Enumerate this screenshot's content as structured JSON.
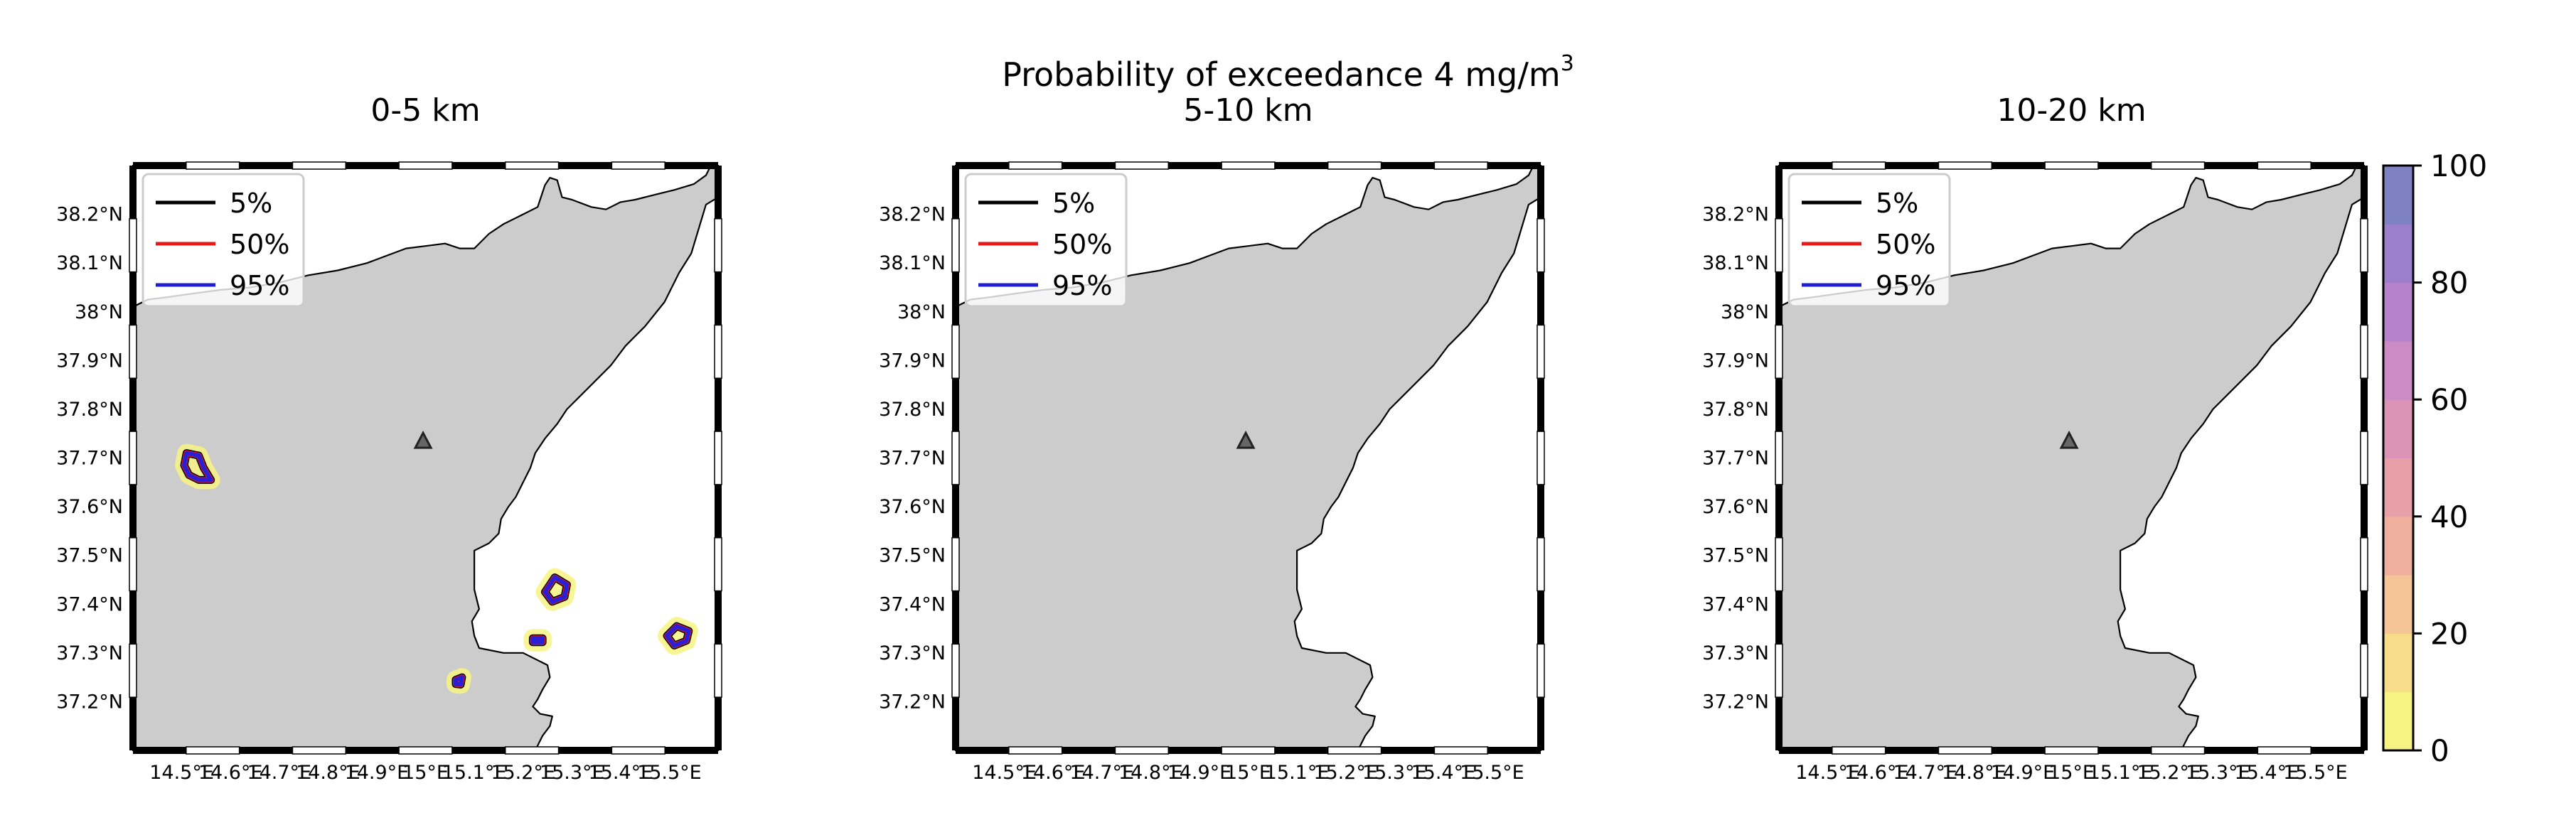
{
  "figure": {
    "suptitle_main": "Probability of exceedance 4 mg/m",
    "suptitle_sup": "3"
  },
  "chart_data": [
    {
      "type": "contour",
      "title": "0-5 km",
      "xlabel": "",
      "ylabel": "",
      "x_ticks": [
        "14.5°E",
        "14.6°E",
        "14.7°E",
        "14.8°E",
        "14.9°E",
        "15°E",
        "15.1°E",
        "15.2°E",
        "15.3°E",
        "15.4°E",
        "15.5°E"
      ],
      "y_ticks": [
        "38.2°N",
        "38.1°N",
        "38°N",
        "37.9°N",
        "37.8°N",
        "37.7°N",
        "37.6°N",
        "37.5°N",
        "37.4°N",
        "37.3°N",
        "37.2°N"
      ],
      "xlim": [
        14.4,
        15.6
      ],
      "ylim": [
        37.1,
        38.3
      ],
      "legend": {
        "position": "top-left",
        "entries": [
          {
            "label": "5%",
            "color": "#000000"
          },
          {
            "label": "50%",
            "color": "#e41a1c"
          },
          {
            "label": "95%",
            "color": "#1f1fd0"
          }
        ]
      },
      "vent": {
        "lon": 14.995,
        "lat": 37.734
      },
      "regions": [
        {
          "name": "plume-west",
          "points": [
            [
              14.51,
              37.71
            ],
            [
              14.535,
              37.705
            ],
            [
              14.545,
              37.68
            ],
            [
              14.56,
              37.655
            ],
            [
              14.535,
              37.655
            ],
            [
              14.515,
              37.665
            ],
            [
              14.505,
              37.685
            ]
          ]
        },
        {
          "name": "plume-catania",
          "points": [
            [
              15.245,
              37.425
            ],
            [
              15.265,
              37.455
            ],
            [
              15.29,
              37.44
            ],
            [
              15.285,
              37.415
            ],
            [
              15.26,
              37.405
            ]
          ]
        },
        {
          "name": "plume-east",
          "points": [
            [
              15.495,
              37.335
            ],
            [
              15.515,
              37.355
            ],
            [
              15.54,
              37.345
            ],
            [
              15.535,
              37.325
            ],
            [
              15.51,
              37.315
            ]
          ]
        },
        {
          "name": "plume-small-1",
          "points": [
            [
              15.22,
              37.33
            ],
            [
              15.24,
              37.33
            ],
            [
              15.24,
              37.322
            ],
            [
              15.22,
              37.322
            ]
          ]
        },
        {
          "name": "plume-small-2",
          "points": [
            [
              15.062,
              37.245
            ],
            [
              15.075,
              37.25
            ],
            [
              15.072,
              37.235
            ],
            [
              15.062,
              37.236
            ]
          ]
        }
      ]
    },
    {
      "type": "contour",
      "title": "5-10 km",
      "xlabel": "",
      "ylabel": "",
      "x_ticks": [
        "14.5°E",
        "14.6°E",
        "14.7°E",
        "14.8°E",
        "14.9°E",
        "15°E",
        "15.1°E",
        "15.2°E",
        "15.3°E",
        "15.4°E",
        "15.5°E"
      ],
      "y_ticks": [
        "38.2°N",
        "38.1°N",
        "38°N",
        "37.9°N",
        "37.8°N",
        "37.7°N",
        "37.6°N",
        "37.5°N",
        "37.4°N",
        "37.3°N",
        "37.2°N"
      ],
      "xlim": [
        14.4,
        15.6
      ],
      "ylim": [
        37.1,
        38.3
      ],
      "legend": {
        "position": "top-left",
        "entries": [
          {
            "label": "5%",
            "color": "#000000"
          },
          {
            "label": "50%",
            "color": "#e41a1c"
          },
          {
            "label": "95%",
            "color": "#1f1fd0"
          }
        ]
      },
      "vent": {
        "lon": 14.995,
        "lat": 37.734
      },
      "regions": []
    },
    {
      "type": "contour",
      "title": "10-20 km",
      "xlabel": "",
      "ylabel": "",
      "x_ticks": [
        "14.5°E",
        "14.6°E",
        "14.7°E",
        "14.8°E",
        "14.9°E",
        "15°E",
        "15.1°E",
        "15.2°E",
        "15.3°E",
        "15.4°E",
        "15.5°E"
      ],
      "y_ticks": [
        "38.2°N",
        "38.1°N",
        "38°N",
        "37.9°N",
        "37.8°N",
        "37.7°N",
        "37.6°N",
        "37.5°N",
        "37.4°N",
        "37.3°N",
        "37.2°N"
      ],
      "xlim": [
        14.4,
        15.6
      ],
      "ylim": [
        37.1,
        38.3
      ],
      "legend": {
        "position": "top-left",
        "entries": [
          {
            "label": "5%",
            "color": "#000000"
          },
          {
            "label": "50%",
            "color": "#e41a1c"
          },
          {
            "label": "95%",
            "color": "#1f1fd0"
          }
        ]
      },
      "vent": {
        "lon": 14.995,
        "lat": 37.734
      },
      "regions": []
    },
    {
      "type": "colorbar",
      "ticks": [
        "0",
        "20",
        "40",
        "60",
        "80",
        "100"
      ],
      "range": [
        0,
        100
      ],
      "levels": [
        0,
        10,
        20,
        30,
        40,
        50,
        60,
        70,
        80,
        90,
        100
      ],
      "colors": [
        "#f7f383",
        "#f7dc8a",
        "#f4c596",
        "#eeb09d",
        "#e7a0a8",
        "#dc94b6",
        "#cb8bc4",
        "#b582cc",
        "#9b7fcc",
        "#7f82c2"
      ]
    }
  ],
  "coastline": {
    "land_color": "#cccccc",
    "points": [
      [
        14.4,
        38.28
      ],
      [
        14.4,
        38.01
      ],
      [
        14.43,
        38.025
      ],
      [
        14.47,
        38.03
      ],
      [
        14.52,
        38.037
      ],
      [
        14.58,
        38.045
      ],
      [
        14.64,
        38.05
      ],
      [
        14.7,
        38.06
      ],
      [
        14.76,
        38.075
      ],
      [
        14.82,
        38.085
      ],
      [
        14.88,
        38.1
      ],
      [
        14.92,
        38.115
      ],
      [
        14.96,
        38.13
      ],
      [
        15.0,
        38.135
      ],
      [
        15.04,
        38.14
      ],
      [
        15.07,
        38.13
      ],
      [
        15.1,
        38.13
      ],
      [
        15.13,
        38.16
      ],
      [
        15.16,
        38.18
      ],
      [
        15.2,
        38.2
      ],
      [
        15.23,
        38.215
      ],
      [
        15.245,
        38.26
      ],
      [
        15.255,
        38.275
      ],
      [
        15.27,
        38.27
      ],
      [
        15.28,
        38.235
      ],
      [
        15.3,
        38.23
      ],
      [
        15.34,
        38.215
      ],
      [
        15.37,
        38.21
      ],
      [
        15.4,
        38.225
      ],
      [
        15.43,
        38.23
      ],
      [
        15.47,
        38.24
      ],
      [
        15.51,
        38.25
      ],
      [
        15.55,
        38.262
      ],
      [
        15.575,
        38.28
      ],
      [
        15.585,
        38.3
      ],
      [
        15.6,
        38.3
      ],
      [
        15.6,
        38.235
      ],
      [
        15.575,
        38.22
      ],
      [
        15.56,
        38.17
      ],
      [
        15.545,
        38.12
      ],
      [
        15.52,
        38.08
      ],
      [
        15.49,
        38.02
      ],
      [
        15.45,
        37.97
      ],
      [
        15.41,
        37.93
      ],
      [
        15.38,
        37.89
      ],
      [
        15.35,
        37.86
      ],
      [
        15.32,
        37.83
      ],
      [
        15.29,
        37.8
      ],
      [
        15.27,
        37.77
      ],
      [
        15.245,
        37.74
      ],
      [
        15.225,
        37.71
      ],
      [
        15.215,
        37.68
      ],
      [
        15.2,
        37.65
      ],
      [
        15.185,
        37.62
      ],
      [
        15.17,
        37.6
      ],
      [
        15.155,
        37.575
      ],
      [
        15.15,
        37.545
      ],
      [
        15.13,
        37.525
      ],
      [
        15.1,
        37.51
      ],
      [
        15.1,
        37.48
      ],
      [
        15.1,
        37.43
      ],
      [
        15.11,
        37.39
      ],
      [
        15.095,
        37.365
      ],
      [
        15.1,
        37.335
      ],
      [
        15.11,
        37.31
      ],
      [
        15.16,
        37.3
      ],
      [
        15.2,
        37.3
      ],
      [
        15.22,
        37.29
      ],
      [
        15.25,
        37.275
      ],
      [
        15.255,
        37.25
      ],
      [
        15.24,
        37.225
      ],
      [
        15.23,
        37.205
      ],
      [
        15.22,
        37.19
      ],
      [
        15.235,
        37.175
      ],
      [
        15.26,
        37.17
      ],
      [
        15.255,
        37.15
      ],
      [
        15.24,
        37.13
      ],
      [
        15.225,
        37.1
      ],
      [
        14.4,
        37.1
      ]
    ]
  }
}
